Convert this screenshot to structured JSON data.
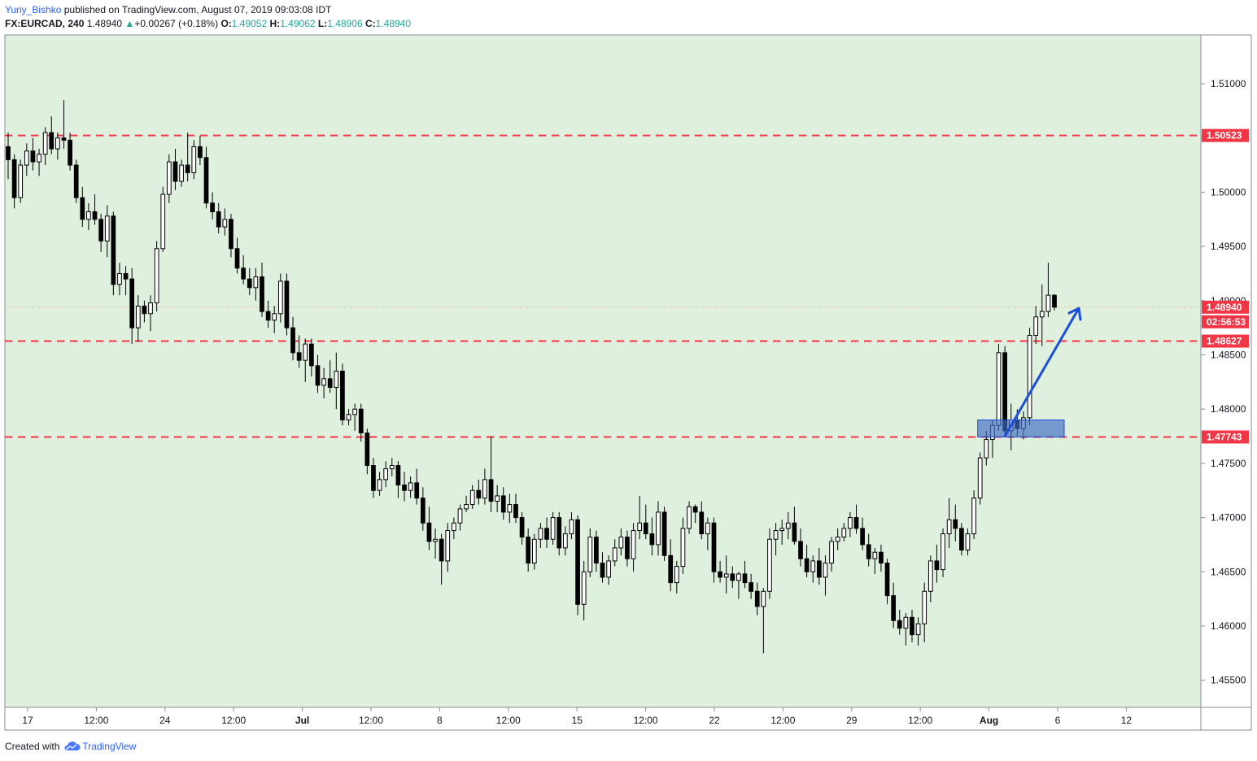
{
  "header": {
    "author": "Yuriy_Bishko",
    "published_text": "published on TradingView.com, August 07, 2019 09:03:08 IDT",
    "symbol": "FX:EURCAD,",
    "interval": "240",
    "last": "1.48940",
    "change": "+0.00267 (+0.18%)",
    "o_label": "O:",
    "o": "1.49052",
    "h_label": "H:",
    "h": "1.49062",
    "l_label": "L:",
    "l": "1.48906",
    "c_label": "C:",
    "c": "1.48940"
  },
  "footer": {
    "created_with": "Created with",
    "brand": "TradingView"
  },
  "colors": {
    "background": "#dff0de",
    "level_line": "#f23645",
    "arrow": "#1c4fd8",
    "zone": "#3f6cc4",
    "price_line": "#e9a47c"
  },
  "chart_data": {
    "type": "candlestick",
    "symbol": "FX:EURCAD",
    "timeframe": "240",
    "y_ticks": [
      1.51,
      1.505,
      1.5,
      1.495,
      1.49,
      1.485,
      1.48,
      1.475,
      1.47,
      1.465,
      1.46,
      1.455
    ],
    "y_tick_labels": [
      "1.51000",
      "",
      "1.50000",
      "1.49500",
      "1.49000",
      "1.48500",
      "1.48000",
      "1.47500",
      "1.47000",
      "1.46500",
      "1.46000",
      "1.45500"
    ],
    "ylim": [
      1.4525,
      1.5145
    ],
    "x_labels": [
      "17",
      "12:00",
      "24",
      "12:00",
      "Jul",
      "12:00",
      "8",
      "12:00",
      "15",
      "12:00",
      "22",
      "12:00",
      "29",
      "12:00",
      "Aug",
      "6",
      "12"
    ],
    "bold_x_labels": [
      "Jul",
      "Aug"
    ],
    "levels": [
      {
        "value": 1.50523,
        "label": "1.50523"
      },
      {
        "value": 1.48627,
        "label": "1.48627"
      },
      {
        "value": 1.47743,
        "label": "1.47743"
      }
    ],
    "current_price": {
      "value": 1.4894,
      "label": "1.48940",
      "countdown": "02:56:53"
    },
    "candles": [
      [
        1.5042,
        1.5055,
        1.5012,
        1.503
      ],
      [
        1.503,
        1.5035,
        1.4985,
        1.4995
      ],
      [
        1.4995,
        1.503,
        1.499,
        1.5025
      ],
      [
        1.5025,
        1.5045,
        1.5015,
        1.5038
      ],
      [
        1.5038,
        1.505,
        1.502,
        1.5028
      ],
      [
        1.5028,
        1.504,
        1.5015,
        1.5035
      ],
      [
        1.5035,
        1.506,
        1.5025,
        1.5055
      ],
      [
        1.5055,
        1.507,
        1.5035,
        1.504
      ],
      [
        1.504,
        1.5055,
        1.503,
        1.505
      ],
      [
        1.505,
        1.5085,
        1.504,
        1.5048
      ],
      [
        1.5048,
        1.5055,
        1.502,
        1.5025
      ],
      [
        1.5025,
        1.503,
        1.499,
        1.4995
      ],
      [
        1.4995,
        1.5005,
        1.4968,
        1.4975
      ],
      [
        1.4975,
        1.499,
        1.4965,
        1.4982
      ],
      [
        1.4982,
        1.4998,
        1.497,
        1.4975
      ],
      [
        1.4975,
        1.498,
        1.4945,
        1.4955
      ],
      [
        1.4955,
        1.4988,
        1.494,
        1.4978
      ],
      [
        1.4978,
        1.4982,
        1.4905,
        1.4915
      ],
      [
        1.4915,
        1.4935,
        1.4905,
        1.4925
      ],
      [
        1.4925,
        1.4932,
        1.4905,
        1.492
      ],
      [
        1.492,
        1.493,
        1.486,
        1.4875
      ],
      [
        1.4875,
        1.4905,
        1.4862,
        1.4895
      ],
      [
        1.4895,
        1.49,
        1.488,
        1.4888
      ],
      [
        1.4888,
        1.4905,
        1.4872,
        1.4898
      ],
      [
        1.4898,
        1.4955,
        1.489,
        1.4948
      ],
      [
        1.4948,
        1.5005,
        1.4945,
        1.4998
      ],
      [
        1.4998,
        1.5035,
        1.499,
        1.5028
      ],
      [
        1.5028,
        1.504,
        1.5002,
        1.501
      ],
      [
        1.501,
        1.503,
        1.5005,
        1.5025
      ],
      [
        1.5025,
        1.5055,
        1.501,
        1.5018
      ],
      [
        1.5018,
        1.5048,
        1.5012,
        1.5042
      ],
      [
        1.5042,
        1.5052,
        1.5025,
        1.5032
      ],
      [
        1.5032,
        1.5042,
        1.4985,
        1.499
      ],
      [
        1.499,
        1.5,
        1.4975,
        1.4982
      ],
      [
        1.4982,
        1.499,
        1.4962,
        1.4968
      ],
      [
        1.4968,
        1.4985,
        1.496,
        1.4975
      ],
      [
        1.4975,
        1.498,
        1.494,
        1.4948
      ],
      [
        1.4948,
        1.4958,
        1.4925,
        1.493
      ],
      [
        1.493,
        1.4942,
        1.4915,
        1.492
      ],
      [
        1.492,
        1.493,
        1.4905,
        1.4912
      ],
      [
        1.4912,
        1.493,
        1.49,
        1.4922
      ],
      [
        1.4922,
        1.4935,
        1.4885,
        1.489
      ],
      [
        1.489,
        1.49,
        1.4875,
        1.4882
      ],
      [
        1.4882,
        1.4895,
        1.487,
        1.4888
      ],
      [
        1.4888,
        1.4925,
        1.488,
        1.4918
      ],
      [
        1.4918,
        1.4925,
        1.4868,
        1.4875
      ],
      [
        1.4875,
        1.4885,
        1.4845,
        1.4852
      ],
      [
        1.4852,
        1.4868,
        1.4838,
        1.4845
      ],
      [
        1.4845,
        1.4865,
        1.4825,
        1.486
      ],
      [
        1.486,
        1.4865,
        1.483,
        1.484
      ],
      [
        1.484,
        1.485,
        1.4815,
        1.4822
      ],
      [
        1.4822,
        1.4838,
        1.481,
        1.4828
      ],
      [
        1.4828,
        1.4845,
        1.4815,
        1.482
      ],
      [
        1.482,
        1.4852,
        1.48,
        1.4835
      ],
      [
        1.4835,
        1.4842,
        1.4785,
        1.479
      ],
      [
        1.479,
        1.48,
        1.4785,
        1.4795
      ],
      [
        1.4795,
        1.4805,
        1.478,
        1.48
      ],
      [
        1.48,
        1.4805,
        1.477,
        1.4778
      ],
      [
        1.4778,
        1.4782,
        1.474,
        1.4748
      ],
      [
        1.4748,
        1.4755,
        1.4718,
        1.4725
      ],
      [
        1.4725,
        1.4742,
        1.472,
        1.4735
      ],
      [
        1.4735,
        1.4752,
        1.4728,
        1.4745
      ],
      [
        1.4745,
        1.4755,
        1.4738,
        1.4748
      ],
      [
        1.4748,
        1.4752,
        1.4718,
        1.473
      ],
      [
        1.473,
        1.4742,
        1.4715,
        1.4725
      ],
      [
        1.4725,
        1.4738,
        1.4718,
        1.4732
      ],
      [
        1.4732,
        1.4745,
        1.4712,
        1.4718
      ],
      [
        1.4718,
        1.4728,
        1.4688,
        1.4695
      ],
      [
        1.4695,
        1.471,
        1.467,
        1.4678
      ],
      [
        1.4678,
        1.469,
        1.4662,
        1.468
      ],
      [
        1.468,
        1.4685,
        1.4638,
        1.466
      ],
      [
        1.466,
        1.4695,
        1.465,
        1.4688
      ],
      [
        1.4688,
        1.47,
        1.468,
        1.4695
      ],
      [
        1.4695,
        1.4712,
        1.4688,
        1.4708
      ],
      [
        1.4708,
        1.472,
        1.4705,
        1.4712
      ],
      [
        1.4712,
        1.473,
        1.4708,
        1.4725
      ],
      [
        1.4725,
        1.4735,
        1.4712,
        1.4718
      ],
      [
        1.4718,
        1.4745,
        1.4712,
        1.4735
      ],
      [
        1.4735,
        1.4775,
        1.4705,
        1.4715
      ],
      [
        1.4715,
        1.473,
        1.4705,
        1.472
      ],
      [
        1.472,
        1.4728,
        1.4698,
        1.4705
      ],
      [
        1.4705,
        1.4722,
        1.4695,
        1.4712
      ],
      [
        1.4712,
        1.4722,
        1.4695,
        1.47
      ],
      [
        1.47,
        1.4705,
        1.4675,
        1.4682
      ],
      [
        1.4682,
        1.469,
        1.465,
        1.4658
      ],
      [
        1.4658,
        1.4685,
        1.4652,
        1.468
      ],
      [
        1.468,
        1.4695,
        1.4672,
        1.469
      ],
      [
        1.469,
        1.47,
        1.4672,
        1.468
      ],
      [
        1.468,
        1.4705,
        1.4675,
        1.47
      ],
      [
        1.47,
        1.4705,
        1.4665,
        1.4672
      ],
      [
        1.4672,
        1.4692,
        1.4665,
        1.4685
      ],
      [
        1.4685,
        1.4705,
        1.468,
        1.4698
      ],
      [
        1.4698,
        1.4702,
        1.461,
        1.462
      ],
      [
        1.462,
        1.466,
        1.4605,
        1.465
      ],
      [
        1.465,
        1.469,
        1.4645,
        1.4682
      ],
      [
        1.4682,
        1.4688,
        1.465,
        1.4658
      ],
      [
        1.4658,
        1.4668,
        1.464,
        1.4645
      ],
      [
        1.4645,
        1.4665,
        1.4638,
        1.466
      ],
      [
        1.466,
        1.468,
        1.4655,
        1.4672
      ],
      [
        1.4672,
        1.469,
        1.4665,
        1.4682
      ],
      [
        1.4682,
        1.4688,
        1.4655,
        1.4662
      ],
      [
        1.4662,
        1.4695,
        1.465,
        1.4688
      ],
      [
        1.4688,
        1.472,
        1.468,
        1.4695
      ],
      [
        1.4695,
        1.4712,
        1.468,
        1.4685
      ],
      [
        1.4685,
        1.47,
        1.4665,
        1.4675
      ],
      [
        1.4675,
        1.4715,
        1.4665,
        1.4705
      ],
      [
        1.4705,
        1.471,
        1.466,
        1.4665
      ],
      [
        1.4665,
        1.468,
        1.4632,
        1.464
      ],
      [
        1.464,
        1.466,
        1.463,
        1.4655
      ],
      [
        1.4655,
        1.47,
        1.4648,
        1.469
      ],
      [
        1.469,
        1.4715,
        1.4685,
        1.471
      ],
      [
        1.471,
        1.4712,
        1.4695,
        1.4705
      ],
      [
        1.4705,
        1.4715,
        1.468,
        1.4685
      ],
      [
        1.4685,
        1.47,
        1.467,
        1.4695
      ],
      [
        1.4695,
        1.47,
        1.464,
        1.465
      ],
      [
        1.465,
        1.466,
        1.464,
        1.4645
      ],
      [
        1.4645,
        1.4665,
        1.463,
        1.4648
      ],
      [
        1.4648,
        1.4655,
        1.4635,
        1.4642
      ],
      [
        1.4642,
        1.465,
        1.4625,
        1.4648
      ],
      [
        1.4648,
        1.466,
        1.4635,
        1.464
      ],
      [
        1.464,
        1.4648,
        1.4625,
        1.4632
      ],
      [
        1.4632,
        1.464,
        1.461,
        1.4618
      ],
      [
        1.4618,
        1.4635,
        1.4575,
        1.4632
      ],
      [
        1.4632,
        1.469,
        1.4625,
        1.468
      ],
      [
        1.468,
        1.4695,
        1.4665,
        1.4688
      ],
      [
        1.4688,
        1.4698,
        1.4675,
        1.469
      ],
      [
        1.469,
        1.4705,
        1.468,
        1.4695
      ],
      [
        1.4695,
        1.471,
        1.4675,
        1.4678
      ],
      [
        1.4678,
        1.469,
        1.4655,
        1.4662
      ],
      [
        1.4662,
        1.4675,
        1.4645,
        1.465
      ],
      [
        1.465,
        1.4665,
        1.464,
        1.466
      ],
      [
        1.466,
        1.4672,
        1.4638,
        1.4645
      ],
      [
        1.4645,
        1.4665,
        1.4628,
        1.4658
      ],
      [
        1.4658,
        1.4682,
        1.465,
        1.4678
      ],
      [
        1.4678,
        1.469,
        1.467,
        1.4682
      ],
      [
        1.4682,
        1.4695,
        1.4678,
        1.469
      ],
      [
        1.469,
        1.4705,
        1.4682,
        1.47
      ],
      [
        1.47,
        1.4712,
        1.4685,
        1.469
      ],
      [
        1.469,
        1.47,
        1.467,
        1.4675
      ],
      [
        1.4675,
        1.4685,
        1.4655,
        1.4662
      ],
      [
        1.4662,
        1.4672,
        1.4648,
        1.4668
      ],
      [
        1.4668,
        1.4675,
        1.465,
        1.4658
      ],
      [
        1.4658,
        1.4662,
        1.462,
        1.4628
      ],
      [
        1.4628,
        1.464,
        1.4598,
        1.4605
      ],
      [
        1.4605,
        1.4615,
        1.4592,
        1.4598
      ],
      [
        1.4598,
        1.4612,
        1.4582,
        1.4608
      ],
      [
        1.4608,
        1.4615,
        1.4585,
        1.4592
      ],
      [
        1.4592,
        1.4608,
        1.4582,
        1.4602
      ],
      [
        1.4602,
        1.464,
        1.4585,
        1.4632
      ],
      [
        1.4632,
        1.4665,
        1.4622,
        1.466
      ],
      [
        1.466,
        1.4675,
        1.464,
        1.4652
      ],
      [
        1.4652,
        1.469,
        1.4645,
        1.4685
      ],
      [
        1.4685,
        1.4718,
        1.4672,
        1.4698
      ],
      [
        1.4698,
        1.4712,
        1.4678,
        1.469
      ],
      [
        1.469,
        1.4695,
        1.4665,
        1.467
      ],
      [
        1.467,
        1.469,
        1.4665,
        1.4685
      ],
      [
        1.4685,
        1.4725,
        1.468,
        1.4718
      ],
      [
        1.4718,
        1.476,
        1.4712,
        1.4755
      ],
      [
        1.4755,
        1.478,
        1.4748,
        1.4772
      ],
      [
        1.4772,
        1.479,
        1.4755,
        1.4785
      ],
      [
        1.4785,
        1.486,
        1.478,
        1.4852
      ],
      [
        1.4852,
        1.4858,
        1.4775,
        1.478
      ],
      [
        1.478,
        1.4805,
        1.4762,
        1.479
      ],
      [
        1.479,
        1.48,
        1.4775,
        1.4782
      ],
      [
        1.4782,
        1.4798,
        1.4772,
        1.4792
      ],
      [
        1.4792,
        1.4875,
        1.4785,
        1.4868
      ],
      [
        1.4868,
        1.4895,
        1.486,
        1.4885
      ],
      [
        1.4885,
        1.4915,
        1.4858,
        1.489
      ],
      [
        1.489,
        1.4935,
        1.4885,
        1.4905
      ],
      [
        1.4905,
        1.4906,
        1.4891,
        1.4894
      ]
    ]
  }
}
